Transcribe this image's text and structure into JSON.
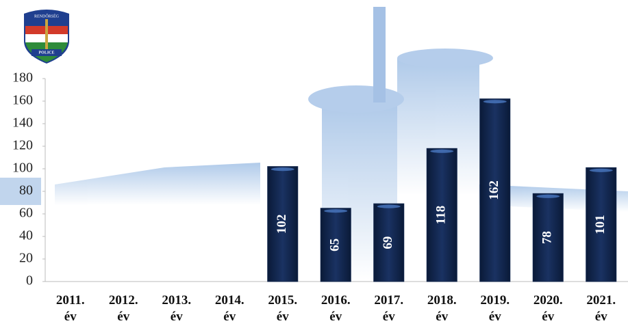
{
  "logo": {
    "top": "RENDŐRSÉG",
    "bottom": "POLICE"
  },
  "chart_data": {
    "type": "bar",
    "categories": [
      "2011.\név",
      "2012.\név",
      "2013.\név",
      "2014.\név",
      "2015.\név",
      "2016.\név",
      "2017.\név",
      "2018.\név",
      "2019.\név",
      "2020.\név",
      "2021.\név"
    ],
    "values": [
      null,
      null,
      null,
      null,
      102,
      65,
      69,
      118,
      162,
      78,
      101
    ],
    "color": "#11254a",
    "ylim": [
      0,
      180
    ],
    "yticks": [
      0,
      20,
      40,
      60,
      80,
      100,
      120,
      140,
      160,
      180
    ],
    "grid": false
  }
}
